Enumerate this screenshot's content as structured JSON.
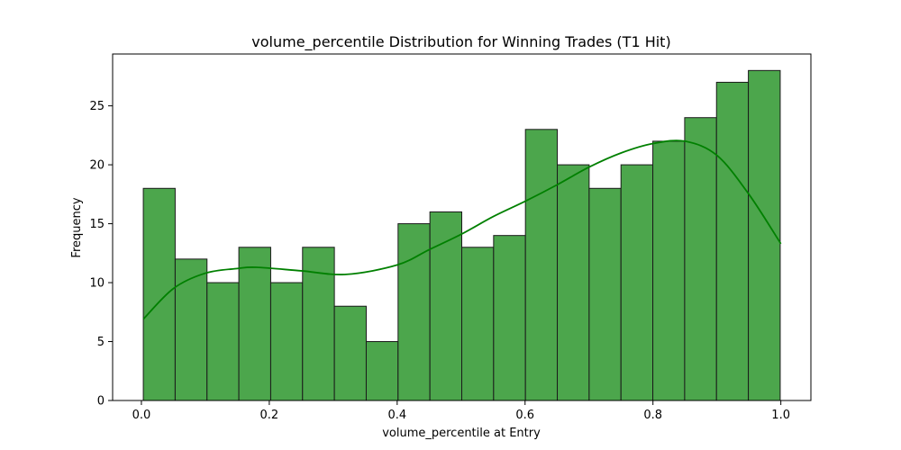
{
  "chart_data": {
    "type": "bar",
    "title": "volume_percentile Distribution for Winning Trades (T1 Hit)",
    "xlabel": "volume_percentile at Entry",
    "ylabel": "Frequency",
    "bin_edges": [
      0.003,
      0.0528,
      0.1026,
      0.1524,
      0.2022,
      0.252,
      0.3018,
      0.3516,
      0.4014,
      0.4512,
      0.501,
      0.5508,
      0.6006,
      0.6504,
      0.7002,
      0.75,
      0.7998,
      0.8496,
      0.8994,
      0.9492,
      0.999
    ],
    "values": [
      18,
      12,
      10,
      13,
      10,
      13,
      8,
      5,
      15,
      16,
      13,
      14,
      23,
      20,
      18,
      20,
      22,
      24,
      27,
      28
    ],
    "kde": {
      "x": [
        0.003,
        0.05,
        0.1,
        0.15,
        0.18,
        0.25,
        0.32,
        0.4,
        0.45,
        0.5,
        0.55,
        0.6,
        0.65,
        0.7,
        0.75,
        0.8,
        0.85,
        0.9,
        0.95,
        1.0
      ],
      "y": [
        6.9,
        9.5,
        10.8,
        11.2,
        11.3,
        11.0,
        10.7,
        11.5,
        12.8,
        14.1,
        15.6,
        16.9,
        18.3,
        19.8,
        21.0,
        21.8,
        22.0,
        20.8,
        17.5,
        13.3
      ],
      "color": "#008000"
    },
    "xlim": [
      -0.045,
      1.047
    ],
    "ylim": [
      0,
      29.4
    ],
    "xticks": [
      0.0,
      0.2,
      0.4,
      0.6,
      0.8,
      1.0
    ],
    "xtick_labels": [
      "0.0",
      "0.2",
      "0.4",
      "0.6",
      "0.8",
      "1.0"
    ],
    "yticks": [
      0,
      5,
      10,
      15,
      20,
      25
    ],
    "ytick_labels": [
      "0",
      "5",
      "10",
      "15",
      "20",
      "25"
    ],
    "bar_color": "#4ca64c",
    "bar_edge_color": "#1a1a1a",
    "grid": false
  }
}
